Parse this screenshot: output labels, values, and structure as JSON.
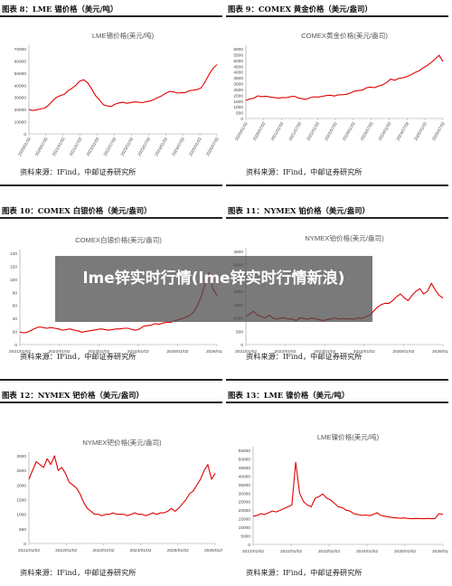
{
  "overlay": {
    "title": "lme锌实时行情(lme锌实时行情新浪)"
  },
  "source_text": "资料来源：IFind，中邮证券研究所",
  "line_color": "#e00000",
  "chart_data": [
    {
      "type": "line",
      "fig_title": "图表 8：LME 锡价格（美元/吨）",
      "series": [
        {
          "name": "LME锡价格(美元/吨)",
          "values": [
            20000,
            19200,
            19800,
            20500,
            21200,
            23500,
            27000,
            30000,
            31500,
            32500,
            35500,
            37500,
            40000,
            43500,
            44500,
            42000,
            37000,
            31500,
            28000,
            24000,
            23000,
            22500,
            24500,
            25500,
            26000,
            25200,
            25800,
            26300,
            26000,
            25700,
            26500,
            27000,
            28500,
            30000,
            31500,
            33500,
            35000,
            34500,
            33500,
            33800,
            34000,
            35500,
            36000,
            36500,
            38000,
            43000,
            49000,
            54000,
            57000
          ]
        }
      ],
      "x_ticks": [
        "2020/01/02",
        "2020/07/02",
        "2021/01/02",
        "2021/07/02",
        "2022/01/02",
        "2022/07/02",
        "2023/01/02",
        "2023/07/02",
        "2024/01/02",
        "2024/07/02",
        "2025/01/02",
        "2025/07/02"
      ],
      "y_ticks": [
        0,
        10000,
        20000,
        30000,
        40000,
        50000,
        60000,
        70000
      ],
      "ylim": [
        0,
        70000
      ]
    },
    {
      "type": "line",
      "fig_title": "图表 9：COMEX 黄金价格（美元/盎司）",
      "series": [
        {
          "name": "COMEX黄金价格(美元/盎司)",
          "values": [
            1550,
            1680,
            1750,
            1950,
            1880,
            1920,
            1850,
            1810,
            1760,
            1800,
            1790,
            1860,
            1920,
            1780,
            1700,
            1650,
            1790,
            1870,
            1850,
            1910,
            1970,
            2000,
            1930,
            2030,
            2050,
            2080,
            2200,
            2350,
            2400,
            2450,
            2650,
            2700,
            2650,
            2800,
            2900,
            3100,
            3400,
            3300,
            3450,
            3500,
            3600,
            3750,
            3950,
            4100,
            4350,
            4550,
            4800,
            5100,
            5450,
            4900
          ]
        }
      ],
      "x_ticks": [
        "2020/01/02",
        "2020/07/02",
        "2021/01/02",
        "2021/07/02",
        "2022/01/02",
        "2022/07/02",
        "2023/01/02",
        "2023/07/02",
        "2024/01/02",
        "2024/07/02",
        "2025/01/02",
        "2025/07/02"
      ],
      "y_ticks": [
        0,
        500,
        1000,
        1500,
        2000,
        2500,
        3000,
        3500,
        4000,
        4500,
        5000,
        5500,
        6000
      ],
      "ylim": [
        0,
        6000
      ]
    },
    {
      "type": "line",
      "fig_title": "图表 10：COMEX 白银价格（美元/盎司）",
      "series": [
        {
          "name": "COMEX白银价格(美元/盎司)",
          "values": [
            19,
            18,
            19,
            22,
            25,
            27,
            26,
            25,
            26,
            25,
            24,
            22,
            23,
            24,
            22,
            21,
            19,
            20,
            21,
            22,
            23,
            24,
            23,
            22,
            23,
            24,
            24,
            25,
            25,
            23,
            22,
            24,
            28,
            29,
            30,
            32,
            31,
            33,
            34,
            34,
            36,
            38,
            40,
            42,
            45,
            50,
            60,
            75,
            95,
            110,
            85,
            75
          ]
        }
      ],
      "x_ticks": [
        "2021/01/02",
        "2022/01/02",
        "2023/01/02",
        "2024/01/02",
        "2025/01/02",
        "2026/01/02"
      ],
      "y_ticks": [
        0,
        20,
        40,
        60,
        80,
        100,
        120,
        140
      ],
      "ylim": [
        0,
        140
      ]
    },
    {
      "type": "line",
      "fig_title": "图表 11：NYMEX 铂价格（美元/盎司）",
      "series": [
        {
          "name": "NYMEX铂价格(美元/盎司)",
          "values": [
            1050,
            1150,
            1250,
            1100,
            1050,
            1000,
            1100,
            1000,
            950,
            1000,
            1000,
            960,
            960,
            900,
            1000,
            980,
            950,
            1000,
            970,
            930,
            900,
            940,
            960,
            1000,
            950,
            980,
            960,
            970,
            950,
            1000,
            980,
            1050,
            1100,
            1250,
            1400,
            1500,
            1550,
            1550,
            1650,
            1800,
            1900,
            1750,
            1650,
            1850,
            2000,
            2100,
            1900,
            2000,
            2300,
            2050,
            1850,
            1750
          ]
        }
      ],
      "x_ticks": [
        "2021/01/02",
        "2022/01/02",
        "2023/01/02",
        "2024/01/02",
        "2025/01/02",
        "2026/01/02"
      ],
      "y_ticks": [
        0,
        500,
        1000,
        1500,
        2000,
        2500,
        3000,
        3500
      ],
      "ylim": [
        0,
        3500
      ]
    },
    {
      "type": "line",
      "fig_title": "图表 12：NYMEX 钯价格（美元/盎司）",
      "series": [
        {
          "name": "NYMEX钯价格(美元/盎司)",
          "values": [
            2200,
            2500,
            2800,
            2700,
            2600,
            2900,
            2700,
            3000,
            2500,
            2600,
            2400,
            2100,
            2000,
            1900,
            1700,
            1400,
            1200,
            1100,
            1000,
            1000,
            950,
            1000,
            1000,
            1050,
            1000,
            1000,
            1000,
            950,
            1000,
            1050,
            1000,
            1000,
            950,
            1000,
            1050,
            1000,
            1050,
            1050,
            1100,
            1200,
            1100,
            1200,
            1350,
            1500,
            1700,
            1800,
            2000,
            2200,
            2500,
            2700,
            2200,
            2400
          ]
        }
      ],
      "x_ticks": [
        "2021/01/02",
        "2022/01/02",
        "2023/01/02",
        "2024/01/02",
        "2025/01/02",
        "2026/01/02"
      ],
      "y_ticks": [
        0,
        500,
        1000,
        1500,
        2000,
        2500,
        3000
      ],
      "ylim": [
        0,
        3000
      ]
    },
    {
      "type": "line",
      "fig_title": "图表 13：LME 镍价格（美元/吨）",
      "series": [
        {
          "name": "LME镍价格(美元/吨)",
          "values": [
            16500,
            17000,
            18000,
            17500,
            18500,
            19500,
            19000,
            20000,
            21000,
            22000,
            23000,
            48000,
            30000,
            25000,
            23000,
            22000,
            27000,
            28000,
            29500,
            27000,
            26000,
            24000,
            22000,
            21500,
            20000,
            19500,
            18000,
            17500,
            17000,
            17200,
            16800,
            17500,
            18500,
            17000,
            16500,
            16000,
            15700,
            15500,
            15300,
            15500,
            15200,
            15000,
            15200,
            15100,
            15000,
            15200,
            15000,
            15200,
            18000,
            17500
          ]
        }
      ],
      "x_ticks": [
        "2021/01/02",
        "2022/01/02",
        "2023/01/02",
        "2024/01/02",
        "2025/01/02",
        "2026/01/02"
      ],
      "y_ticks": [
        0,
        5000,
        10000,
        15000,
        20000,
        25000,
        30000,
        35000,
        40000,
        45000,
        50000,
        55000
      ],
      "ylim": [
        0,
        55000
      ]
    }
  ]
}
